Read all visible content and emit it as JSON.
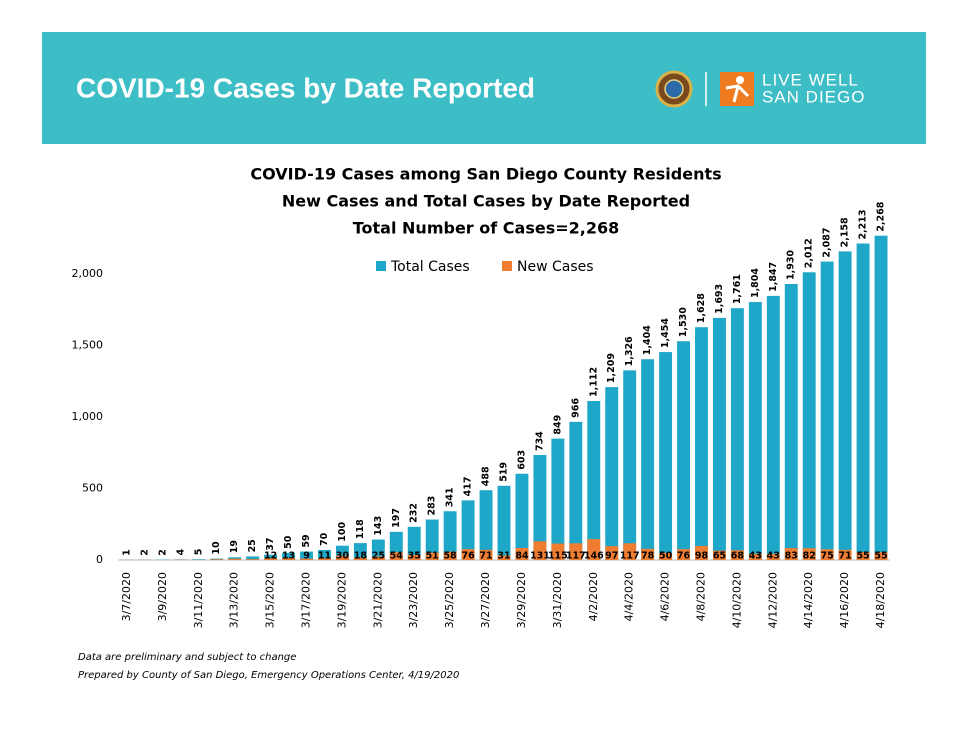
{
  "header": {
    "title": "COVID-19 Cases by Date Reported",
    "logo_text": [
      "LIVE WELL",
      "SAN DIEGO"
    ]
  },
  "chart_data": {
    "type": "bar",
    "title": "COVID-19 Cases among San Diego County Residents",
    "subtitle": [
      "New Cases and Total Cases by Date Reported",
      "Total Number of Cases=2,268"
    ],
    "categories": [
      "3/7/2020",
      null,
      "3/9/2020",
      null,
      "3/11/2020",
      null,
      "3/13/2020",
      null,
      "3/15/2020",
      null,
      "3/17/2020",
      null,
      "3/19/2020",
      null,
      "3/21/2020",
      null,
      "3/23/2020",
      null,
      "3/25/2020",
      null,
      "3/27/2020",
      null,
      "3/29/2020",
      null,
      "3/31/2020",
      null,
      "4/2/2020",
      null,
      "4/4/2020",
      null,
      "4/6/2020",
      null,
      "4/8/2020",
      null,
      "4/10/2020",
      null,
      "4/12/2020",
      null,
      "4/14/2020",
      null,
      "4/16/2020",
      null,
      "4/18/2020"
    ],
    "series": [
      {
        "name": "Total Cases",
        "color": "#1ea7c8",
        "values": [
          1,
          2,
          2,
          4,
          5,
          10,
          19,
          25,
          37,
          50,
          59,
          70,
          100,
          118,
          143,
          197,
          232,
          283,
          341,
          417,
          488,
          519,
          603,
          734,
          849,
          966,
          1112,
          1209,
          1326,
          1404,
          1454,
          1530,
          1628,
          1693,
          1761,
          1804,
          1847,
          1930,
          2012,
          2087,
          2158,
          2213,
          2268
        ],
        "value_labels": [
          "1",
          "2",
          "2",
          "4",
          "5",
          "10",
          "19",
          "25",
          "37",
          "50",
          "59",
          "70",
          "100",
          "118",
          "143",
          "197",
          "232",
          "283",
          "341",
          "417",
          "488",
          "519",
          "603",
          "734",
          "849",
          "966",
          "1,112",
          "1,209",
          "1,326",
          "1,404",
          "1,454",
          "1,530",
          "1,628",
          "1,693",
          "1,761",
          "1,804",
          "1,847",
          "1,930",
          "2,012",
          "2,087",
          "2,158",
          "2,213",
          "2,268"
        ]
      },
      {
        "name": "New Cases",
        "color": "#ee7d31",
        "values": [
          1,
          1,
          0,
          2,
          1,
          5,
          9,
          6,
          12,
          13,
          9,
          11,
          30,
          18,
          25,
          54,
          35,
          51,
          58,
          76,
          71,
          31,
          84,
          131,
          115,
          117,
          146,
          97,
          117,
          78,
          50,
          76,
          98,
          65,
          68,
          43,
          43,
          83,
          82,
          75,
          71,
          55,
          55
        ],
        "value_labels": [
          null,
          null,
          null,
          null,
          null,
          null,
          null,
          null,
          "12",
          "13",
          "9",
          "11",
          "30",
          "18",
          "25",
          "54",
          "35",
          "51",
          "58",
          "76",
          "71",
          "31",
          "84",
          "131",
          "115",
          "117",
          "146",
          "97",
          "117",
          "78",
          "50",
          "76",
          "98",
          "65",
          "68",
          "43",
          "43",
          "83",
          "82",
          "75",
          "71",
          "55",
          "55"
        ]
      }
    ],
    "ylim": [
      0,
      2500
    ],
    "yticks": [
      0,
      {
        "value": 500,
        "label": "500"
      },
      {
        "value": 1000,
        "label": "1,000"
      },
      {
        "value": 1500,
        "label": "1,500"
      },
      {
        "value": 2000,
        "label": "2,000"
      }
    ],
    "legend": "top",
    "grid": false
  },
  "footnotes": [
    "Data are preliminary and subject to change",
    "Prepared by County of San Diego, Emergency Operations Center, 4/19/2020"
  ]
}
